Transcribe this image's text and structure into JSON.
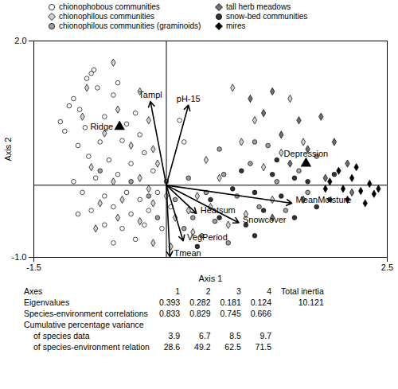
{
  "chart_data": {
    "type": "scatter",
    "x_label": "Axis 1",
    "y_label": "Axis 2",
    "xlim": [
      -1.5,
      2.5
    ],
    "ylim": [
      -1.0,
      2.0
    ],
    "xticks": [
      -1.5,
      2.5
    ],
    "yticks": [
      {
        "value": -1.0,
        "label": "-1.0"
      },
      {
        "value": 2.0,
        "label": "2.0"
      }
    ],
    "series": [
      {
        "name": "chionophobous communities",
        "color": "#ffffff",
        "marker": "circle",
        "x": [
          -0.85,
          -0.82,
          -0.9,
          -0.78,
          -0.55,
          -0.6,
          -1.1,
          -1.05,
          -0.98,
          -1.2,
          -1.15,
          -0.92,
          -0.7,
          -0.45,
          -0.35,
          -0.3,
          -0.5,
          -0.75,
          -1.0,
          -0.88,
          -0.65,
          -0.4,
          -0.25,
          -0.15,
          -0.55,
          -0.8,
          -1.05,
          -0.95,
          -0.7,
          -0.45,
          -0.3,
          -0.6,
          -0.85,
          -1.0,
          -0.4,
          -0.2,
          -0.7,
          -0.5,
          -0.25,
          -0.1,
          0.05,
          -0.05,
          -0.35,
          -0.6,
          0.15,
          0.2
        ],
        "y": [
          1.55,
          1.6,
          1.48,
          1.35,
          1.42,
          1.25,
          1.1,
          1.2,
          1.05,
          0.88,
          0.75,
          0.8,
          0.95,
          0.85,
          1.0,
          0.7,
          0.62,
          0.6,
          0.55,
          0.4,
          0.35,
          0.3,
          0.45,
          0.2,
          0.15,
          0.1,
          0.05,
          -0.1,
          -0.15,
          -0.1,
          -0.2,
          -0.3,
          -0.35,
          -0.4,
          -0.4,
          -0.35,
          -0.55,
          -0.6,
          -0.55,
          -0.1,
          -0.3,
          -0.6,
          -0.75,
          -0.8,
          0.9,
          0.6
        ]
      },
      {
        "name": "chionophilous communities",
        "color": "#d0d0d0",
        "marker": "diamond",
        "x": [
          -0.9,
          -0.6,
          -0.95,
          -0.55,
          -0.3,
          -0.2,
          -0.7,
          -0.4,
          -0.15,
          -0.85,
          -0.6,
          -0.3,
          -0.1,
          -0.2,
          -0.5,
          -0.75,
          -0.15,
          0.0,
          0.1,
          -0.3,
          -0.55,
          -0.8,
          -0.15,
          0.05,
          0.25,
          0.35,
          0.5,
          0.6,
          0.45,
          0.7,
          0.9,
          1.1,
          1.3,
          1.0,
          1.4,
          0.85,
          0.3,
          1.55,
          1.2,
          0.75
        ],
        "y": [
          1.35,
          1.7,
          0.95,
          1.05,
          1.3,
          0.9,
          0.72,
          0.55,
          0.5,
          0.25,
          0.05,
          0.1,
          0.3,
          -0.05,
          -0.2,
          -0.25,
          -0.25,
          -0.15,
          -0.45,
          -0.5,
          -0.45,
          -0.6,
          -0.8,
          -0.85,
          -0.35,
          -0.15,
          -0.3,
          0.1,
          0.35,
          -0.55,
          -0.4,
          0.25,
          0.45,
          0.9,
          1.2,
          0.6,
          -0.65,
          0.6,
          -0.2,
          1.35
        ]
      },
      {
        "name": "chionophilous communities (graminoids)",
        "color": "#a0a0a0",
        "marker": "circle",
        "x": [
          -0.75,
          -0.4,
          -0.2,
          0.0,
          0.1,
          0.25,
          0.3,
          0.45,
          0.55,
          0.65,
          0.8,
          0.95,
          1.05,
          1.15,
          1.25,
          1.35,
          1.5,
          1.6,
          0.4,
          0.7,
          -0.1,
          0.2,
          1.0,
          1.7,
          0.6
        ],
        "y": [
          0.2,
          0.05,
          -0.15,
          0.05,
          -0.2,
          0.1,
          -0.45,
          -0.1,
          -0.5,
          0.15,
          -0.15,
          0.3,
          -0.3,
          0.55,
          0.05,
          -0.35,
          0.2,
          -0.1,
          -0.7,
          -0.8,
          -0.45,
          -0.6,
          0.6,
          0.4,
          0.5
        ]
      },
      {
        "name": "tall herb meadows",
        "color": "#707070",
        "marker": "diamond",
        "x": [
          1.2,
          1.1,
          1.5,
          1.75,
          1.3,
          1.9,
          1.6,
          2.05,
          1.8,
          1.4,
          1.55,
          2.1,
          1.2,
          0.95
        ],
        "y": [
          1.3,
          1.0,
          0.9,
          0.95,
          0.7,
          0.6,
          0.5,
          0.3,
          0.1,
          0.3,
          -0.2,
          -0.1,
          -0.45,
          1.2
        ]
      },
      {
        "name": "snow-bed communities",
        "color": "#333333",
        "marker": "circle",
        "x": [
          0.5,
          0.6,
          0.75,
          0.9,
          1.0,
          1.1,
          1.2,
          1.3,
          1.45,
          1.6,
          1.7,
          1.85,
          0.85,
          1.45,
          0.35,
          1.0,
          1.9,
          1.25
        ],
        "y": [
          -0.2,
          -0.45,
          -0.05,
          -0.55,
          -0.1,
          -0.35,
          0.15,
          -0.15,
          -0.45,
          0.05,
          -0.3,
          -0.2,
          0.2,
          0.1,
          -0.85,
          -0.7,
          0.15,
          0.35
        ]
      },
      {
        "name": "mires",
        "color": "#000000",
        "marker": "diamond",
        "x": [
          1.85,
          2.0,
          2.1,
          2.2,
          2.3,
          2.35,
          2.05,
          1.95,
          2.15,
          2.4,
          1.8,
          2.25
        ],
        "y": [
          0.05,
          -0.05,
          0.1,
          -0.08,
          0.02,
          -0.12,
          -0.2,
          0.2,
          0.25,
          -0.05,
          -0.05,
          -0.25
        ]
      }
    ],
    "arrows": [
      {
        "name": "Tampl",
        "x": -0.18,
        "y": 1.16
      },
      {
        "name": "pH-15",
        "x": 0.25,
        "y": 1.11
      },
      {
        "name": "MeanMoisture",
        "x": 1.42,
        "y": -0.25
      },
      {
        "name": "Snowcover",
        "x": 0.82,
        "y": -0.52
      },
      {
        "name": "Heatsum",
        "x": 0.34,
        "y": -0.39
      },
      {
        "name": "VegPeriod",
        "x": 0.19,
        "y": -0.77
      },
      {
        "name": "Tmean",
        "x": 0.04,
        "y": -0.99
      }
    ],
    "centroids": [
      {
        "name": "Ridge",
        "x": -0.53,
        "y": 0.81,
        "marker": "triangle"
      },
      {
        "name": "Depression",
        "x": 1.58,
        "y": 0.3,
        "marker": "triangle"
      }
    ]
  },
  "table": {
    "header": [
      "Axes",
      "1",
      "2",
      "3",
      "4",
      "Total inertia"
    ],
    "rows": [
      [
        "Eigenvalues",
        0.393,
        0.282,
        0.181,
        0.124,
        10.121
      ],
      [
        "Species-environment correlations",
        0.833,
        0.829,
        0.745,
        0.666
      ],
      [
        "Cumulative percentage variance"
      ],
      [
        "of species data",
        3.9,
        6.7,
        8.5,
        9.7
      ],
      [
        "of species-environment relation",
        28.6,
        49.2,
        62.5,
        71.5
      ]
    ]
  }
}
